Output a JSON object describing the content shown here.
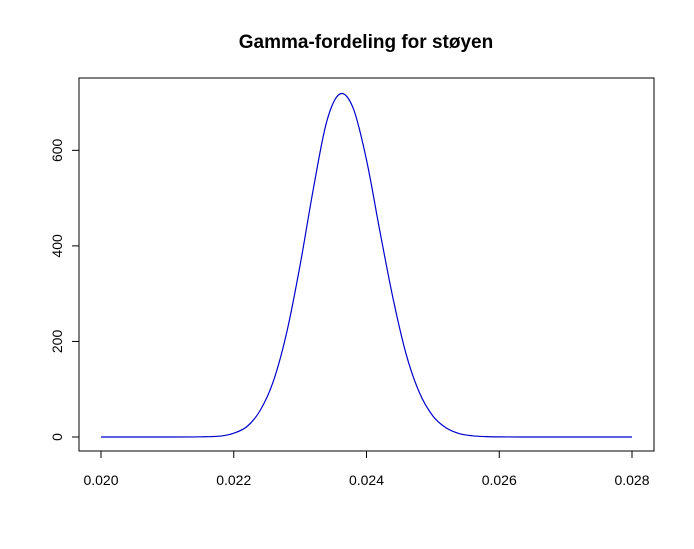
{
  "chart_data": {
    "type": "line",
    "title": "Gamma-fordeling for støyen",
    "xlabel": "",
    "ylabel": "",
    "xlim": [
      0.02,
      0.028
    ],
    "ylim": [
      0,
      720
    ],
    "x_ticks": [
      0.02,
      0.022,
      0.024,
      0.026,
      0.028
    ],
    "x_tick_labels": [
      "0.020",
      "0.022",
      "0.024",
      "0.026",
      "0.028"
    ],
    "y_ticks": [
      0,
      200,
      400,
      600
    ],
    "y_tick_labels": [
      "0",
      "200",
      "400",
      "600"
    ],
    "grid": false,
    "legend": "none",
    "series": [
      {
        "color": "#0000cc",
        "x": [
          0.02,
          0.021,
          0.0215,
          0.0218,
          0.022,
          0.0222,
          0.0224,
          0.0226,
          0.0228,
          0.023,
          0.0232,
          0.0234,
          0.0236,
          0.0238,
          0.024,
          0.0242,
          0.0244,
          0.0246,
          0.0248,
          0.025,
          0.0252,
          0.0254,
          0.0256,
          0.0258,
          0.026,
          0.0265,
          0.027,
          0.028
        ],
        "y": [
          0,
          0,
          0.4,
          2,
          8,
          22,
          56,
          118,
          220,
          360,
          520,
          660,
          718,
          688,
          580,
          432,
          290,
          172,
          92,
          44,
          19,
          7,
          2.5,
          0.8,
          0.2,
          0,
          0,
          0
        ]
      }
    ]
  }
}
